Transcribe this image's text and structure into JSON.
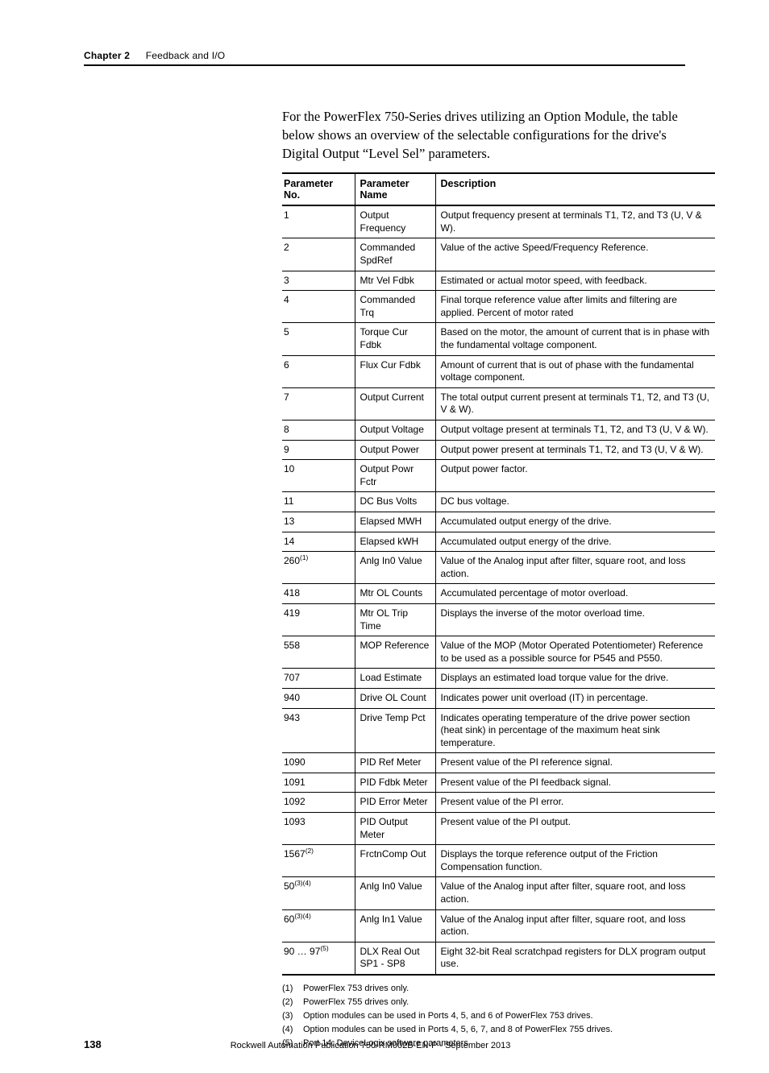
{
  "header": {
    "chapter": "Chapter 2",
    "section": "Feedback and I/O"
  },
  "intro": "For the PowerFlex 750-Series drives utilizing an Option Module, the table below shows an overview of the selectable configurations for the drive's Digital Output “Level Sel” parameters.",
  "table": {
    "columns": [
      "Parameter No.",
      "Parameter Name",
      "Description"
    ],
    "rows": [
      {
        "no": "1",
        "refs": "",
        "name": "Output Frequency",
        "desc": "Output frequency present at terminals T1, T2, and T3 (U, V & W)."
      },
      {
        "no": "2",
        "refs": "",
        "name": "Commanded SpdRef",
        "desc": "Value of the active Speed/Frequency Reference."
      },
      {
        "no": "3",
        "refs": "",
        "name": "Mtr Vel Fdbk",
        "desc": "Estimated or actual motor speed, with feedback."
      },
      {
        "no": "4",
        "refs": "",
        "name": "Commanded Trq",
        "desc": "Final torque reference value after limits and filtering are applied. Percent of motor rated"
      },
      {
        "no": "5",
        "refs": "",
        "name": "Torque Cur Fdbk",
        "desc": "Based on the motor, the amount of current that is in phase with the fundamental voltage component."
      },
      {
        "no": "6",
        "refs": "",
        "name": "Flux Cur Fdbk",
        "desc": "Amount of current that is out of phase with the fundamental voltage component."
      },
      {
        "no": "7",
        "refs": "",
        "name": "Output Current",
        "desc": "The total output current present at terminals T1, T2, and T3 (U, V & W)."
      },
      {
        "no": "8",
        "refs": "",
        "name": "Output Voltage",
        "desc": "Output voltage present at terminals T1, T2, and T3 (U, V & W)."
      },
      {
        "no": "9",
        "refs": "",
        "name": "Output Power",
        "desc": "Output power present at terminals T1, T2, and T3 (U, V & W)."
      },
      {
        "no": "10",
        "refs": "",
        "name": "Output Powr Fctr",
        "desc": "Output power factor."
      },
      {
        "no": "11",
        "refs": "",
        "name": "DC Bus Volts",
        "desc": "DC bus voltage."
      },
      {
        "no": "13",
        "refs": "",
        "name": "Elapsed MWH",
        "desc": "Accumulated output energy of the drive."
      },
      {
        "no": "14",
        "refs": "",
        "name": "Elapsed kWH",
        "desc": "Accumulated output energy of the drive."
      },
      {
        "no": "260",
        "refs": "(1)",
        "name": "Anlg In0 Value",
        "desc": "Value of the Analog input after filter, square root, and loss action."
      },
      {
        "no": "418",
        "refs": "",
        "name": "Mtr OL Counts",
        "desc": "Accumulated percentage of motor overload."
      },
      {
        "no": "419",
        "refs": "",
        "name": "Mtr OL Trip Time",
        "desc": "Displays the inverse of the motor overload time."
      },
      {
        "no": "558",
        "refs": "",
        "name": "MOP Reference",
        "desc": "Value of the MOP (Motor Operated Potentiometer) Reference to be used as a possible source for P545 and P550."
      },
      {
        "no": "707",
        "refs": "",
        "name": "Load Estimate",
        "desc": "Displays an estimated load torque value for the drive."
      },
      {
        "no": "940",
        "refs": "",
        "name": "Drive OL Count",
        "desc": "Indicates power unit overload (IT) in percentage."
      },
      {
        "no": "943",
        "refs": "",
        "name": "Drive Temp Pct",
        "desc": "Indicates operating temperature of the drive power section (heat sink) in percentage of the maximum heat sink temperature."
      },
      {
        "no": "1090",
        "refs": "",
        "name": "PID Ref Meter",
        "desc": "Present value of the PI reference signal."
      },
      {
        "no": "1091",
        "refs": "",
        "name": "PID Fdbk Meter",
        "desc": "Present value of the PI feedback signal."
      },
      {
        "no": "1092",
        "refs": "",
        "name": "PID Error Meter",
        "desc": "Present value of the PI error."
      },
      {
        "no": "1093",
        "refs": "",
        "name": "PID Output Meter",
        "desc": "Present value of the PI output."
      },
      {
        "no": "1567",
        "refs": "(2)",
        "name": "FrctnComp Out",
        "desc": "Displays the torque reference output of the Friction Compensation function."
      },
      {
        "no": "50",
        "refs": "(3)(4)",
        "name": "Anlg In0 Value",
        "desc": "Value of the Analog input after filter, square root, and loss action."
      },
      {
        "no": "60",
        "refs": "(3)(4)",
        "name": "Anlg In1 Value",
        "desc": "Value of the Analog input after filter, square root, and loss action."
      },
      {
        "no": "90 … 97",
        "refs": "(5)",
        "name": "DLX Real Out SP1 - SP8",
        "desc": "Eight 32-bit Real scratchpad registers for DLX program output use."
      }
    ]
  },
  "footnotes": [
    {
      "num": "(1)",
      "text": "PowerFlex 753 drives only."
    },
    {
      "num": "(2)",
      "text": "PowerFlex 755 drives only."
    },
    {
      "num": "(3)",
      "text": "Option modules can be used in Ports 4, 5, and 6 of PowerFlex 753 drives."
    },
    {
      "num": "(4)",
      "text": "Option modules can be used in Ports 4, 5, 6, 7, and 8 of PowerFlex 755 drives."
    },
    {
      "num": "(5)",
      "text": "Port 14: DeviceLogix software parameters"
    }
  ],
  "footer": {
    "page": "138",
    "publication": "Rockwell Automation Publication 750-RM002B-EN-P - September 2013"
  }
}
